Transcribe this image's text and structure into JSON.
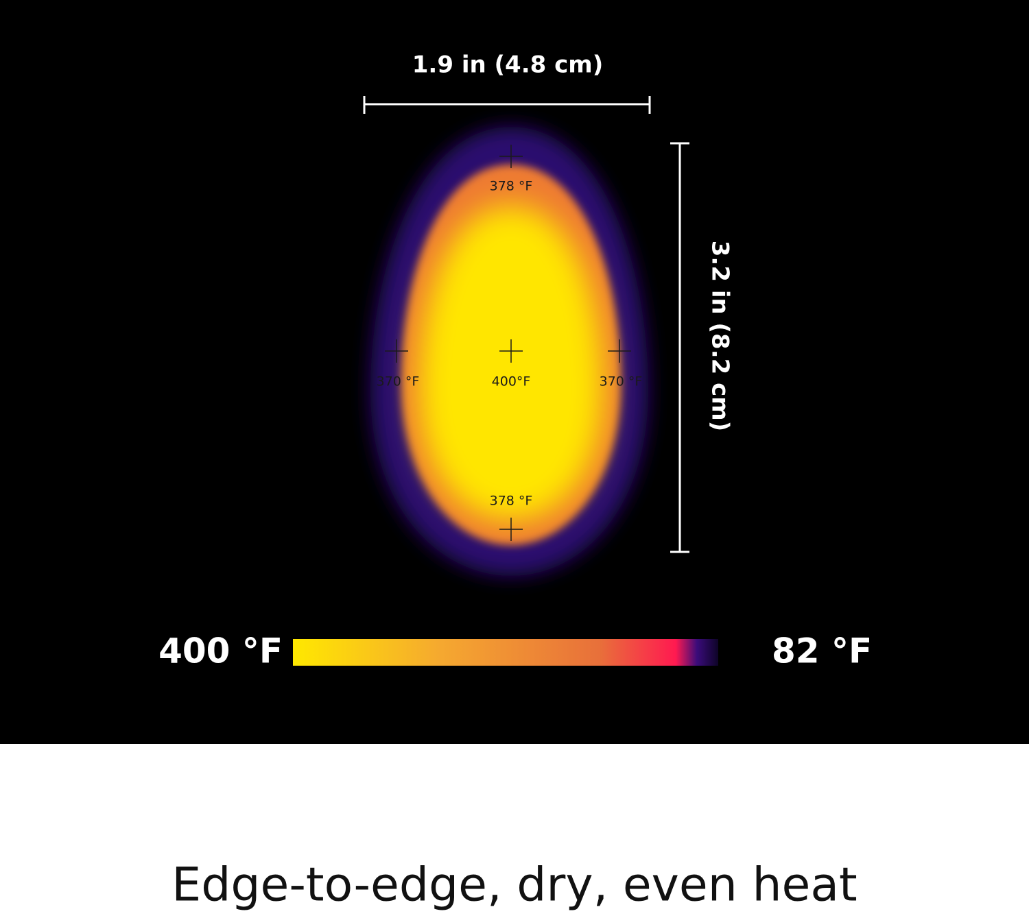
{
  "dimensions": {
    "width": "1.9 in (4.8 cm)",
    "height": "3.2 in (8.2 cm)"
  },
  "points": {
    "top": "378 °F",
    "left": "370 °F",
    "center": "400°F",
    "right": "370 °F",
    "bottom": "378 °F"
  },
  "scale": {
    "max_label": "400 °F",
    "min_label": "82 °F"
  },
  "caption": "Edge-to-edge, dry, even heat"
}
